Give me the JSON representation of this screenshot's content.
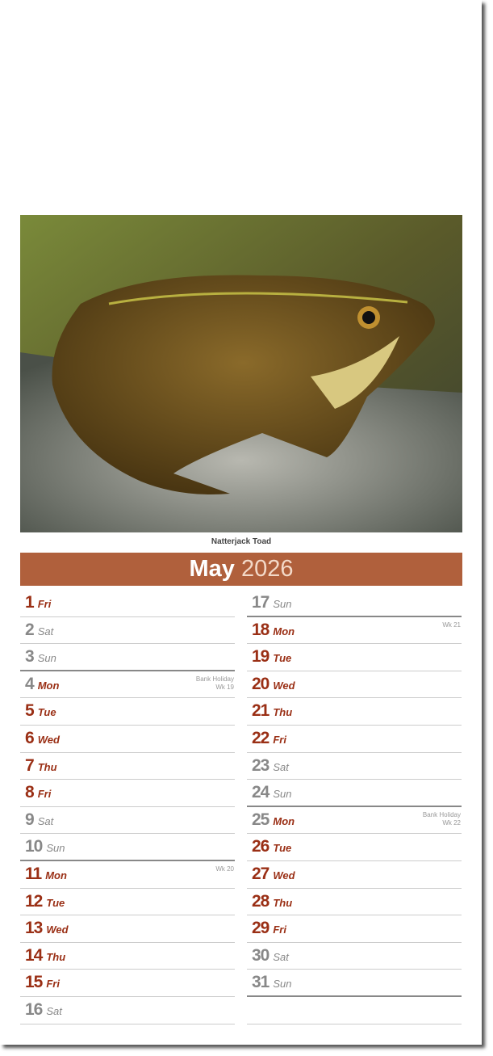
{
  "photo": {
    "caption": "Natterjack Toad"
  },
  "header": {
    "month": "May",
    "year": "2026"
  },
  "colors": {
    "banner": "#b0603c",
    "weekday": "#9a2f15",
    "weekend": "#888888"
  },
  "days": [
    {
      "n": "1",
      "d": "Fri"
    },
    {
      "n": "2",
      "d": "Sat",
      "we": true
    },
    {
      "n": "3",
      "d": "Sun",
      "we": true,
      "sun": true
    },
    {
      "n": "4",
      "d": "Mon",
      "hol": true,
      "note": "Bank Holiday",
      "wk": "Wk 19"
    },
    {
      "n": "5",
      "d": "Tue"
    },
    {
      "n": "6",
      "d": "Wed"
    },
    {
      "n": "7",
      "d": "Thu"
    },
    {
      "n": "8",
      "d": "Fri"
    },
    {
      "n": "9",
      "d": "Sat",
      "we": true
    },
    {
      "n": "10",
      "d": "Sun",
      "we": true,
      "sun": true
    },
    {
      "n": "11",
      "d": "Mon",
      "wk": "Wk 20"
    },
    {
      "n": "12",
      "d": "Tue"
    },
    {
      "n": "13",
      "d": "Wed"
    },
    {
      "n": "14",
      "d": "Thu"
    },
    {
      "n": "15",
      "d": "Fri"
    },
    {
      "n": "16",
      "d": "Sat",
      "we": true
    },
    {
      "n": "17",
      "d": "Sun",
      "we": true,
      "sun": true
    },
    {
      "n": "18",
      "d": "Mon",
      "wk": "Wk 21"
    },
    {
      "n": "19",
      "d": "Tue"
    },
    {
      "n": "20",
      "d": "Wed"
    },
    {
      "n": "21",
      "d": "Thu"
    },
    {
      "n": "22",
      "d": "Fri"
    },
    {
      "n": "23",
      "d": "Sat",
      "we": true
    },
    {
      "n": "24",
      "d": "Sun",
      "we": true,
      "sun": true
    },
    {
      "n": "25",
      "d": "Mon",
      "hol": true,
      "note": "Bank Holiday",
      "wk": "Wk 22"
    },
    {
      "n": "26",
      "d": "Tue"
    },
    {
      "n": "27",
      "d": "Wed"
    },
    {
      "n": "28",
      "d": "Thu"
    },
    {
      "n": "29",
      "d": "Fri"
    },
    {
      "n": "30",
      "d": "Sat",
      "we": true
    },
    {
      "n": "31",
      "d": "Sun",
      "we": true,
      "sun": true
    }
  ]
}
